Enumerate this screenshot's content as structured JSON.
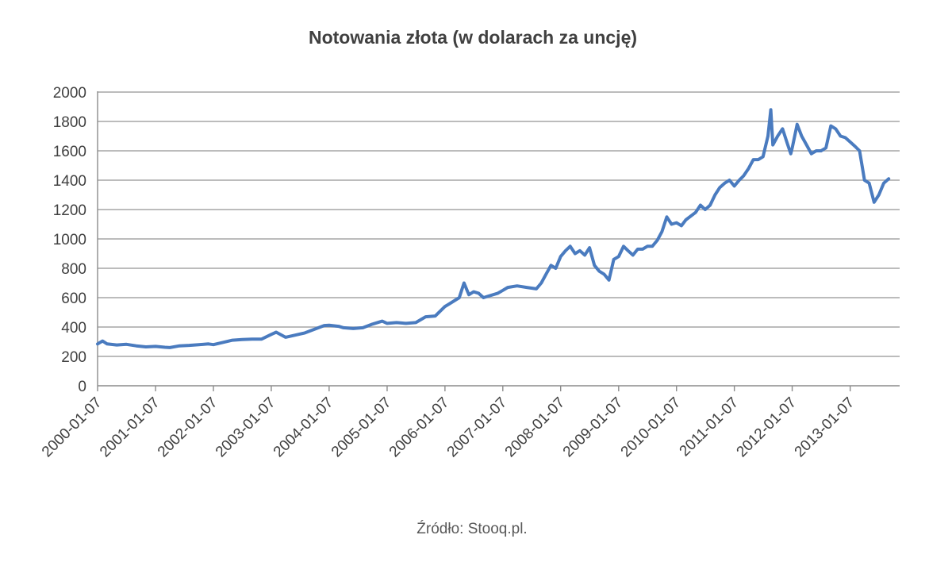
{
  "chart_data": {
    "type": "line",
    "title": "Notowania złota (w dolarach za uncję)",
    "source": "Źródło: Stooq.pl.",
    "xlabel": "",
    "ylabel": "",
    "ylim": [
      0,
      2000
    ],
    "yticks": [
      "0",
      "200",
      "400",
      "600",
      "800",
      "1000",
      "1200",
      "1400",
      "1600",
      "1800",
      "2000"
    ],
    "xticks": [
      "2000-01-07",
      "2001-01-07",
      "2002-01-07",
      "2003-01-07",
      "2004-01-07",
      "2005-01-07",
      "2006-01-07",
      "2007-01-07",
      "2008-01-07",
      "2009-01-07",
      "2010-01-07",
      "2011-01-07",
      "2012-01-07",
      "2013-01-07"
    ],
    "grid": "horizontal",
    "legend": "none",
    "line_color": "#4a7bbf",
    "series": [
      {
        "x": [
          "2000-01-07",
          "2000-02-07",
          "2000-03-07",
          "2000-05-07",
          "2000-07-07",
          "2000-09-07",
          "2000-11-07",
          "2001-01-07",
          "2001-03-07",
          "2001-04-07",
          "2001-06-07",
          "2001-08-07",
          "2001-10-07",
          "2001-12-07",
          "2002-01-07",
          "2002-03-07",
          "2002-05-07",
          "2002-07-07",
          "2002-09-07",
          "2002-11-07",
          "2003-01-07",
          "2003-02-07",
          "2003-04-07",
          "2003-06-07",
          "2003-08-07",
          "2003-10-07",
          "2003-12-07",
          "2004-01-07",
          "2004-03-07",
          "2004-04-07",
          "2004-06-07",
          "2004-08-07",
          "2004-10-07",
          "2004-12-07",
          "2005-01-07",
          "2005-03-07",
          "2005-05-07",
          "2005-07-07",
          "2005-09-07",
          "2005-11-07",
          "2006-01-07",
          "2006-02-07",
          "2006-04-07",
          "2006-05-07",
          "2006-06-07",
          "2006-07-07",
          "2006-08-07",
          "2006-09-07",
          "2006-10-07",
          "2006-12-07",
          "2007-01-07",
          "2007-02-07",
          "2007-04-07",
          "2007-06-07",
          "2007-08-07",
          "2007-09-07",
          "2007-10-07",
          "2007-11-07",
          "2007-12-07",
          "2008-01-07",
          "2008-02-07",
          "2008-03-07",
          "2008-04-07",
          "2008-05-07",
          "2008-06-07",
          "2008-07-07",
          "2008-08-07",
          "2008-09-07",
          "2008-10-07",
          "2008-11-07",
          "2008-12-07",
          "2009-01-07",
          "2009-02-07",
          "2009-03-07",
          "2009-04-07",
          "2009-05-07",
          "2009-06-07",
          "2009-07-07",
          "2009-08-07",
          "2009-09-07",
          "2009-10-07",
          "2009-11-07",
          "2009-12-07",
          "2010-01-07",
          "2010-02-07",
          "2010-03-07",
          "2010-05-07",
          "2010-06-07",
          "2010-07-07",
          "2010-08-07",
          "2010-09-07",
          "2010-10-07",
          "2010-11-07",
          "2010-12-07",
          "2011-01-07",
          "2011-02-07",
          "2011-03-07",
          "2011-04-07",
          "2011-05-07",
          "2011-06-07",
          "2011-07-07",
          "2011-08-07",
          "2011-08-25",
          "2011-09-07",
          "2011-10-07",
          "2011-11-07",
          "2011-12-07",
          "2011-12-29",
          "2012-01-07",
          "2012-02-07",
          "2012-03-07",
          "2012-04-07",
          "2012-05-07",
          "2012-06-07",
          "2012-07-07",
          "2012-08-07",
          "2012-09-07",
          "2012-10-07",
          "2012-11-07",
          "2012-12-07",
          "2013-01-07",
          "2013-02-07",
          "2013-03-07",
          "2013-04-07",
          "2013-05-07",
          "2013-06-07",
          "2013-07-07",
          "2013-08-07",
          "2013-09-07"
        ],
        "values": [
          285,
          305,
          285,
          278,
          282,
          272,
          265,
          268,
          262,
          260,
          272,
          275,
          280,
          285,
          280,
          295,
          310,
          315,
          318,
          318,
          350,
          365,
          330,
          345,
          360,
          385,
          410,
          412,
          405,
          395,
          390,
          395,
          420,
          440,
          425,
          430,
          425,
          430,
          470,
          475,
          540,
          560,
          600,
          700,
          620,
          640,
          630,
          600,
          610,
          630,
          650,
          670,
          680,
          670,
          660,
          700,
          760,
          820,
          800,
          880,
          920,
          950,
          900,
          920,
          890,
          940,
          820,
          780,
          760,
          720,
          860,
          880,
          950,
          920,
          890,
          930,
          930,
          950,
          950,
          990,
          1050,
          1150,
          1100,
          1110,
          1090,
          1130,
          1180,
          1230,
          1200,
          1230,
          1300,
          1350,
          1380,
          1400,
          1360,
          1400,
          1430,
          1480,
          1540,
          1540,
          1560,
          1700,
          1880,
          1640,
          1700,
          1750,
          1650,
          1580,
          1620,
          1780,
          1700,
          1640,
          1580,
          1600,
          1600,
          1620,
          1770,
          1750,
          1700,
          1690,
          1660,
          1630,
          1600,
          1400,
          1380,
          1250,
          1300,
          1380,
          1410
        ]
      }
    ]
  }
}
